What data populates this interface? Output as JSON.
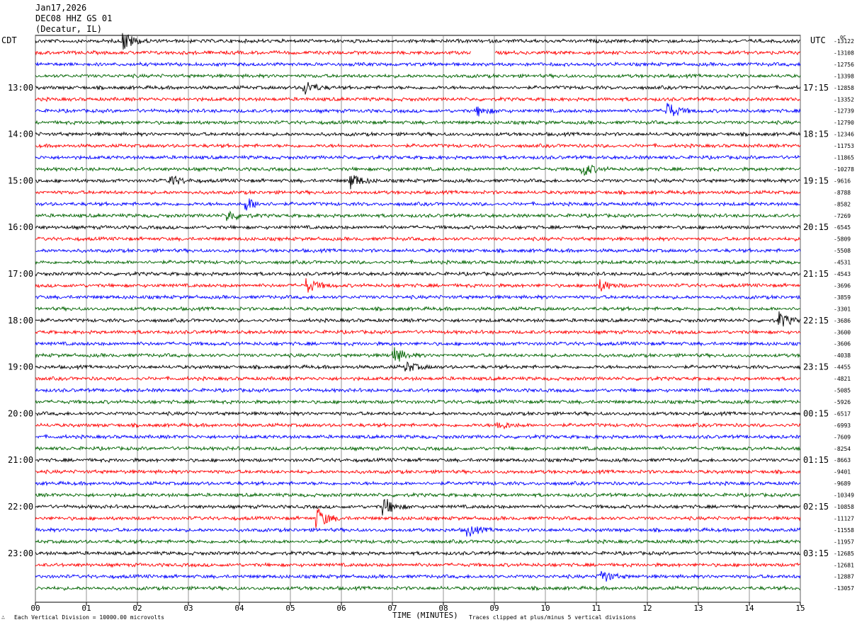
{
  "header": {
    "date": "Jan17,2026",
    "station": "DEC08 HHZ GS 01",
    "location": "(Decatur, IL)"
  },
  "left_zone": "CDT",
  "right_zone": "UTC",
  "corner_mark": "0C",
  "xlabel": "TIME (MINUTES)",
  "footer_left": "Each Vertical Division = 10000.00 microvolts",
  "footer_right": "Traces clipped at plus/minus 5 vertical divisions",
  "footer_icon": "seismograph-icon",
  "chart_data": {
    "type": "line",
    "title": "DEC08 HHZ GS 01",
    "xlim": [
      0,
      15
    ],
    "x_ticks": [
      "00",
      "01",
      "02",
      "03",
      "04",
      "05",
      "06",
      "07",
      "08",
      "09",
      "10",
      "11",
      "12",
      "13",
      "14",
      "15"
    ],
    "grid": true,
    "trace_colors": [
      "#000000",
      "#ff0000",
      "#0000ff",
      "#006400"
    ],
    "left_hour_labels": [
      {
        "row": 4,
        "text": "13:00"
      },
      {
        "row": 8,
        "text": "14:00"
      },
      {
        "row": 12,
        "text": "15:00"
      },
      {
        "row": 16,
        "text": "16:00"
      },
      {
        "row": 20,
        "text": "17:00"
      },
      {
        "row": 24,
        "text": "18:00"
      },
      {
        "row": 28,
        "text": "19:00"
      },
      {
        "row": 32,
        "text": "20:00"
      },
      {
        "row": 36,
        "text": "21:00"
      },
      {
        "row": 40,
        "text": "22:00"
      },
      {
        "row": 44,
        "text": "23:00"
      }
    ],
    "right_hour_labels": [
      {
        "row": 4,
        "text": "17:15"
      },
      {
        "row": 8,
        "text": "18:15"
      },
      {
        "row": 12,
        "text": "19:15"
      },
      {
        "row": 16,
        "text": "20:15"
      },
      {
        "row": 20,
        "text": "21:15"
      },
      {
        "row": 24,
        "text": "22:15"
      },
      {
        "row": 28,
        "text": "23:15"
      },
      {
        "row": 32,
        "text": "00:15"
      },
      {
        "row": 36,
        "text": "01:15"
      },
      {
        "row": 40,
        "text": "02:15"
      },
      {
        "row": 44,
        "text": "03:15"
      }
    ],
    "trace_values": [
      "-13122",
      "-13108",
      "-12756",
      "-13398",
      "-12858",
      "-13352",
      "-12739",
      "-12790",
      "-12346",
      "-11753",
      "-11865",
      "-10278",
      "-9616",
      "-8788",
      "-8582",
      "-7269",
      "-6545",
      "-5809",
      "-5508",
      "-4531",
      "-4543",
      "-3696",
      "-3859",
      "-3301",
      "-3686",
      "-3600",
      "-3606",
      "-4038",
      "-4455",
      "-4821",
      "-5085",
      "-5926",
      "-6517",
      "-6993",
      "-7609",
      "-8254",
      "-8663",
      "-9401",
      "-9689",
      "-10349",
      "-10858",
      "-11127",
      "-11558",
      "-11957",
      "-12685",
      "-12681",
      "-12887",
      "-13057"
    ],
    "events": [
      {
        "row": 0,
        "minute": 1.75,
        "amp": 2.2
      },
      {
        "row": 4,
        "minute": 5.3,
        "amp": 1.6
      },
      {
        "row": 6,
        "minute": 12.4,
        "amp": 2.0
      },
      {
        "row": 6,
        "minute": 8.7,
        "amp": 1.0
      },
      {
        "row": 11,
        "minute": 10.75,
        "amp": 1.6
      },
      {
        "row": 12,
        "minute": 2.65,
        "amp": 1.4
      },
      {
        "row": 12,
        "minute": 6.2,
        "amp": 1.8
      },
      {
        "row": 14,
        "minute": 4.15,
        "amp": 1.4
      },
      {
        "row": 15,
        "minute": 3.8,
        "amp": 1.2
      },
      {
        "row": 21,
        "minute": 5.35,
        "amp": 1.5
      },
      {
        "row": 21,
        "minute": 11.1,
        "amp": 1.2
      },
      {
        "row": 24,
        "minute": 14.6,
        "amp": 1.8
      },
      {
        "row": 27,
        "minute": 7.05,
        "amp": 1.8
      },
      {
        "row": 28,
        "minute": 7.3,
        "amp": 1.1
      },
      {
        "row": 33,
        "minute": 9.1,
        "amp": 1.0
      },
      {
        "row": 40,
        "minute": 6.85,
        "amp": 2.0
      },
      {
        "row": 41,
        "minute": 5.55,
        "amp": 2.3
      },
      {
        "row": 42,
        "minute": 8.5,
        "amp": 1.3
      },
      {
        "row": 46,
        "minute": 11.1,
        "amp": 1.6
      }
    ],
    "gaps": [
      {
        "row": 1,
        "from": 8.55,
        "to": 9.0
      }
    ]
  }
}
